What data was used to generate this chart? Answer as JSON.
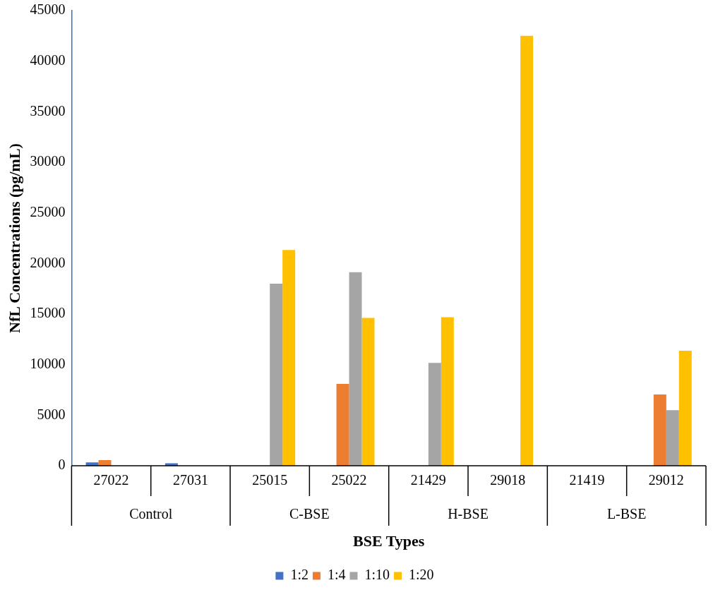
{
  "chart_data": {
    "type": "bar",
    "xlabel": "BSE Types",
    "ylabel": "NfL Concentrations (pg/mL)",
    "categories": [
      "27022",
      "27031",
      "25015",
      "25022",
      "21429",
      "29018",
      "21419",
      "29012"
    ],
    "annotations": [
      "Control",
      "C-BSE",
      "H-BSE",
      "L-BSE"
    ],
    "series": [
      {
        "name": "1:2",
        "color": "#4472c4",
        "values": [
          330,
          250,
          null,
          null,
          null,
          null,
          null,
          null
        ]
      },
      {
        "name": "1:4",
        "color": "#ed7d31",
        "values": [
          560,
          null,
          null,
          8100,
          null,
          null,
          null,
          7040
        ]
      },
      {
        "name": "1:10",
        "color": "#a5a5a5",
        "values": [
          null,
          null,
          18000,
          19140,
          10170,
          null,
          null,
          5500
        ]
      },
      {
        "name": "1:20",
        "color": "#ffc000",
        "values": [
          null,
          null,
          21330,
          14620,
          14690,
          42510,
          null,
          11370
        ]
      }
    ],
    "ylim": [
      0,
      45000
    ],
    "yticks": [
      0,
      5000,
      10000,
      15000,
      20000,
      25000,
      30000,
      35000,
      40000,
      45000
    ],
    "grid": false,
    "legend": "bottom"
  }
}
